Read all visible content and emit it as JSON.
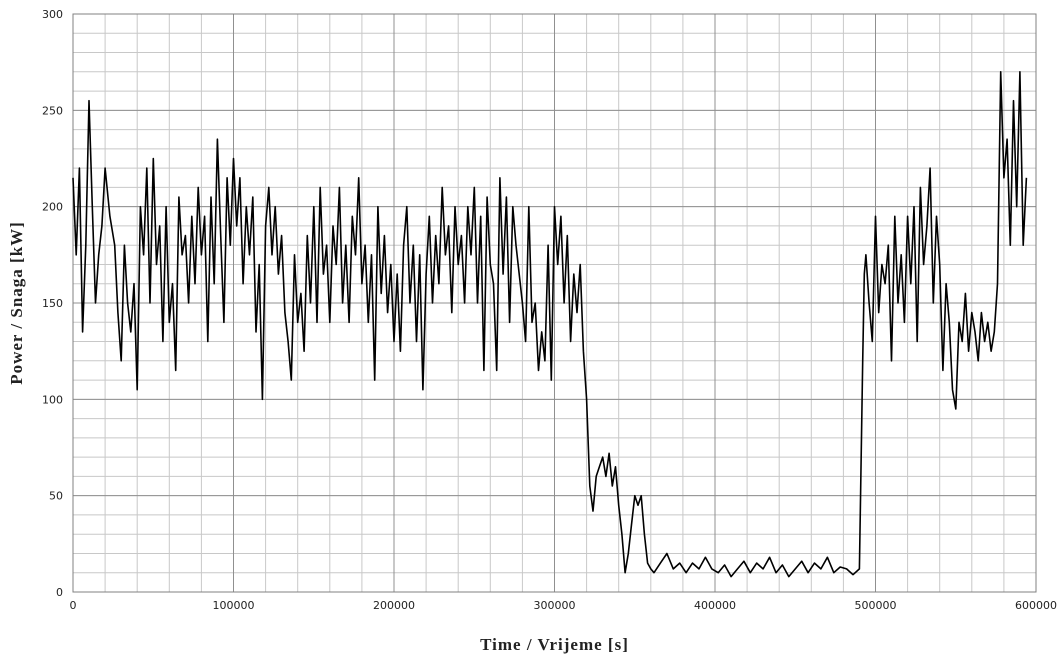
{
  "chart_data": {
    "type": "line",
    "title": "",
    "xlabel": "Time / Vrijeme [s]",
    "ylabel": "Power / Snaga [kW]",
    "xlim": [
      0,
      600000
    ],
    "ylim": [
      0,
      300
    ],
    "x_ticks": [
      0,
      100000,
      200000,
      300000,
      400000,
      500000,
      600000
    ],
    "x_tick_labels": [
      "0",
      "100000",
      "200000",
      "300000",
      "400000",
      "500000",
      "600000"
    ],
    "y_ticks": [
      0,
      50,
      100,
      150,
      200,
      250,
      300
    ],
    "y_tick_labels": [
      "0",
      "50",
      "100",
      "150",
      "200",
      "250",
      "300"
    ],
    "grid": true,
    "minor_grid_x_step": 20000,
    "minor_grid_y_step": 10,
    "legend": "none",
    "line_color": "#000000",
    "series": [
      {
        "x": [
          0,
          2000,
          4000,
          6000,
          8000,
          10000,
          12000,
          14000,
          16000,
          18000,
          20000,
          23000,
          26000,
          28000,
          30000,
          32000,
          34000,
          36000,
          38000,
          40000,
          42000,
          44000,
          46000,
          48000,
          50000,
          52000,
          54000,
          56000,
          58000,
          60000,
          62000,
          64000,
          66000,
          68000,
          70000,
          72000,
          74000,
          76000,
          78000,
          80000,
          82000,
          84000,
          86000,
          88000,
          90000,
          92000,
          94000,
          96000,
          98000,
          100000,
          102000,
          104000,
          106000,
          108000,
          110000,
          112000,
          114000,
          116000,
          118000,
          120000,
          122000,
          124000,
          126000,
          128000,
          130000,
          132000,
          134000,
          136000,
          138000,
          140000,
          142000,
          144000,
          146000,
          148000,
          150000,
          152000,
          154000,
          156000,
          158000,
          160000,
          162000,
          164000,
          166000,
          168000,
          170000,
          172000,
          174000,
          176000,
          178000,
          180000,
          182000,
          184000,
          186000,
          188000,
          190000,
          192000,
          194000,
          196000,
          198000,
          200000,
          202000,
          204000,
          206000,
          208000,
          210000,
          212000,
          214000,
          216000,
          218000,
          220000,
          222000,
          224000,
          226000,
          228000,
          230000,
          232000,
          234000,
          236000,
          238000,
          240000,
          242000,
          244000,
          246000,
          248000,
          250000,
          252000,
          254000,
          256000,
          258000,
          260000,
          262000,
          264000,
          266000,
          268000,
          270000,
          272000,
          274000,
          276000,
          278000,
          280000,
          282000,
          284000,
          286000,
          288000,
          290000,
          292000,
          294000,
          296000,
          298000,
          300000,
          302000,
          304000,
          306000,
          308000,
          310000,
          312000,
          314000,
          316000,
          318000,
          320000,
          322000,
          324000,
          326000,
          328000,
          330000,
          332000,
          334000,
          336000,
          338000,
          340000,
          342000,
          344000,
          346000,
          348000,
          350000,
          352000,
          354000,
          356000,
          358000,
          360000,
          362000,
          366000,
          370000,
          374000,
          378000,
          382000,
          386000,
          390000,
          394000,
          398000,
          402000,
          406000,
          410000,
          414000,
          418000,
          422000,
          426000,
          430000,
          434000,
          438000,
          442000,
          446000,
          450000,
          454000,
          458000,
          462000,
          466000,
          470000,
          474000,
          478000,
          482000,
          486000,
          490000,
          492000,
          493000,
          494000,
          496000,
          498000,
          500000,
          502000,
          504000,
          506000,
          508000,
          510000,
          512000,
          514000,
          516000,
          518000,
          520000,
          522000,
          524000,
          526000,
          528000,
          530000,
          532000,
          534000,
          536000,
          538000,
          540000,
          542000,
          544000,
          546000,
          548000,
          550000,
          552000,
          554000,
          556000,
          558000,
          560000,
          562000,
          564000,
          566000,
          568000,
          570000,
          572000,
          574000,
          576000,
          578000,
          580000,
          582000,
          584000,
          586000,
          588000,
          590000,
          592000,
          594000
        ],
        "y": [
          215,
          175,
          220,
          135,
          180,
          255,
          200,
          150,
          175,
          190,
          220,
          195,
          180,
          145,
          120,
          180,
          150,
          135,
          160,
          105,
          200,
          175,
          220,
          150,
          225,
          170,
          190,
          130,
          200,
          140,
          160,
          115,
          205,
          175,
          185,
          150,
          195,
          160,
          210,
          175,
          195,
          130,
          205,
          160,
          235,
          185,
          140,
          215,
          180,
          225,
          190,
          215,
          160,
          200,
          175,
          205,
          135,
          170,
          100,
          190,
          210,
          175,
          200,
          165,
          185,
          145,
          130,
          110,
          175,
          140,
          155,
          125,
          185,
          150,
          200,
          140,
          210,
          165,
          180,
          140,
          190,
          170,
          210,
          150,
          180,
          140,
          195,
          175,
          215,
          160,
          180,
          140,
          175,
          110,
          200,
          155,
          185,
          145,
          170,
          130,
          165,
          125,
          180,
          200,
          150,
          180,
          130,
          175,
          105,
          165,
          195,
          150,
          185,
          160,
          210,
          175,
          190,
          145,
          200,
          170,
          185,
          150,
          200,
          175,
          210,
          150,
          195,
          115,
          205,
          170,
          160,
          115,
          215,
          165,
          205,
          140,
          200,
          180,
          165,
          150,
          130,
          200,
          140,
          150,
          115,
          135,
          120,
          180,
          110,
          200,
          170,
          195,
          150,
          185,
          130,
          165,
          145,
          170,
          125,
          100,
          55,
          42,
          60,
          65,
          70,
          60,
          72,
          55,
          65,
          45,
          30,
          10,
          20,
          35,
          50,
          45,
          50,
          30,
          15,
          12,
          10,
          15,
          20,
          12,
          15,
          10,
          15,
          12,
          18,
          12,
          10,
          14,
          8,
          12,
          16,
          10,
          15,
          12,
          18,
          10,
          14,
          8,
          12,
          16,
          10,
          15,
          12,
          18,
          10,
          13,
          12,
          9,
          12,
          120,
          165,
          175,
          150,
          130,
          195,
          145,
          170,
          160,
          180,
          120,
          195,
          150,
          175,
          140,
          195,
          160,
          200,
          130,
          210,
          170,
          190,
          220,
          150,
          195,
          170,
          115,
          160,
          140,
          105,
          95,
          140,
          130,
          155,
          125,
          145,
          135,
          120,
          145,
          130,
          140,
          125,
          135,
          160,
          270,
          215,
          235,
          180,
          255,
          200,
          270,
          180,
          215
        ]
      }
    ]
  }
}
